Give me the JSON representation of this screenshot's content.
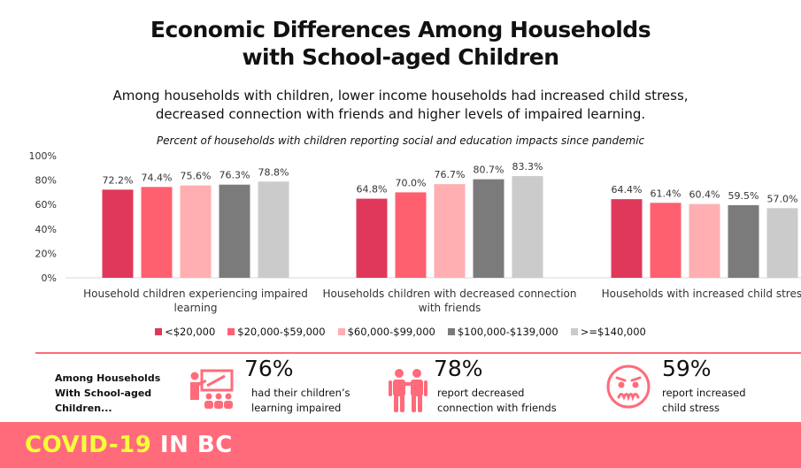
{
  "header": {
    "title_line1": "Economic Differences Among Households",
    "title_line2": "with School-aged Children",
    "subtitle_line1": "Among households with children, lower income households had increased child stress,",
    "subtitle_line2": "decreased connection with friends and higher levels of impaired learning.",
    "chart_caption": "Percent of households with children reporting social and education impacts since pandemic"
  },
  "chart_data": {
    "type": "bar",
    "categories": [
      [
        "Household children experiencing impaired",
        "learning"
      ],
      [
        "Households children with decreased connection",
        "with friends"
      ],
      [
        "Households with increased child stress"
      ]
    ],
    "series": [
      {
        "name": "<$20,000",
        "color": "#e0385a",
        "values": [
          72.2,
          64.8,
          64.4
        ]
      },
      {
        "name": "$20,000-$59,000",
        "color": "#ff6070",
        "values": [
          74.4,
          70.0,
          61.4
        ]
      },
      {
        "name": "$60,000-$99,000",
        "color": "#ffaeb1",
        "values": [
          75.6,
          76.7,
          60.4
        ]
      },
      {
        "name": "$100,000-$139,000",
        "color": "#7b7b7b",
        "values": [
          76.3,
          80.7,
          59.5
        ]
      },
      {
        "name": ">=$140,000",
        "color": "#cbcbcb",
        "values": [
          78.8,
          83.3,
          57.0
        ]
      }
    ],
    "ylim": [
      0,
      100
    ],
    "yticks": [
      "0%",
      "20%",
      "40%",
      "60%",
      "80%",
      "100%"
    ],
    "grid": false,
    "legend_position": "bottom"
  },
  "summary": {
    "label": [
      "Among Households",
      "With School-aged",
      "Children..."
    ],
    "accent_color": "#ff6b7a",
    "stats": [
      {
        "icon": "teacher-icon",
        "percent": "76%",
        "desc_line1": "had their children’s",
        "desc_line2": "learning impaired"
      },
      {
        "icon": "friends-icon",
        "percent": "78%",
        "desc_line1": "report decreased",
        "desc_line2": "connection with friends"
      },
      {
        "icon": "stressed-face-icon",
        "percent": "59%",
        "desc_line1": "report increased",
        "desc_line2": "child stress"
      }
    ]
  },
  "footer": {
    "covid": "COVID-19",
    "inbc": "IN BC",
    "covid_color": "#f4ff3a"
  }
}
